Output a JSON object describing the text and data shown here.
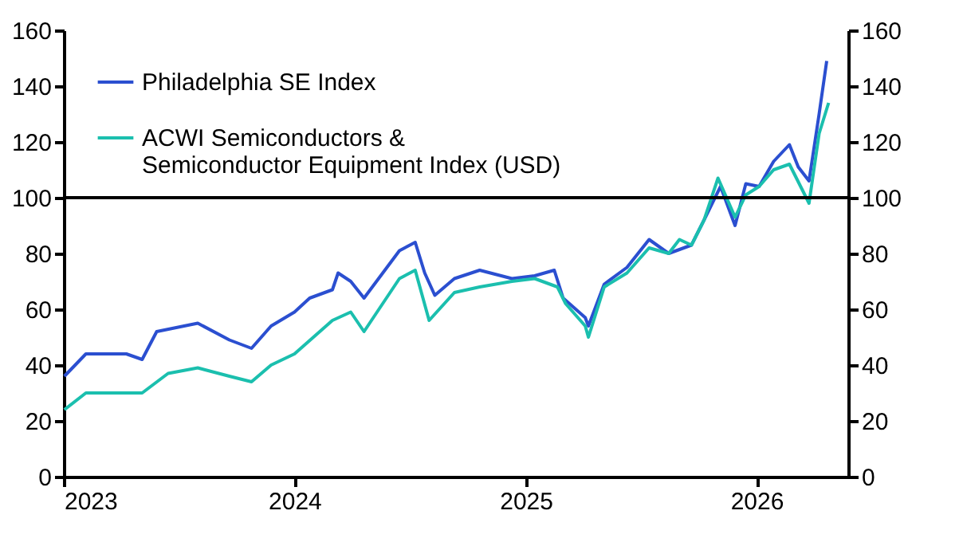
{
  "chart_data": {
    "type": "line",
    "legend": "top left",
    "ylim": [
      0,
      160
    ],
    "yticks": [
      0,
      20,
      40,
      60,
      80,
      100,
      120,
      140,
      160
    ],
    "y2lim": [
      0,
      160
    ],
    "y2ticks": [
      0,
      20,
      40,
      60,
      80,
      100,
      120,
      140,
      160
    ],
    "xlim": [
      "2023-01-01",
      "2026-05-26"
    ],
    "xticks": [
      "2023",
      "2024",
      "2025",
      "2026"
    ],
    "grid": false,
    "line_style": "solid",
    "ref_lines": [
      {
        "axis": "y2",
        "value": 100,
        "color": "#000000"
      }
    ],
    "series": [
      {
        "name": "Philadelphia SE Index",
        "color": "#2b4fd0",
        "x": [
          "2023-01-02",
          "2023-02-05",
          "2023-04-10",
          "2023-05-05",
          "2023-05-28",
          "2023-08-01",
          "2023-09-20",
          "2023-10-25",
          "2023-11-25",
          "2024-01-01",
          "2024-01-25",
          "2024-03-01",
          "2024-03-10",
          "2024-03-30",
          "2024-04-20",
          "2024-06-15",
          "2024-07-10",
          "2024-07-25",
          "2024-08-10",
          "2024-09-10",
          "2024-10-20",
          "2024-12-10",
          "2025-01-15",
          "2025-02-15",
          "2025-03-01",
          "2025-04-05",
          "2025-04-10",
          "2025-05-05",
          "2025-06-10",
          "2025-07-15",
          "2025-08-15",
          "2025-09-20",
          "2025-10-10",
          "2025-11-05",
          "2025-11-28",
          "2025-12-15",
          "2026-01-05",
          "2026-01-28",
          "2026-02-22",
          "2026-03-08",
          "2026-03-25",
          "2026-04-10",
          "2026-04-22"
        ],
        "values": [
          36,
          44,
          44,
          42,
          52,
          55,
          49,
          46,
          54,
          59,
          64,
          67,
          73,
          70,
          64,
          81,
          84,
          73,
          65,
          71,
          74,
          71,
          72,
          74,
          64,
          57,
          54,
          69,
          75,
          85,
          80,
          83,
          92,
          104,
          90,
          105,
          104,
          113,
          119,
          111,
          106,
          130,
          149
        ]
      },
      {
        "name": "ACWI Semiconductors & Semiconductor Equipment Index (USD)",
        "color": "#1bbfae",
        "x": [
          "2023-01-02",
          "2023-02-05",
          "2023-05-05",
          "2023-06-15",
          "2023-08-01",
          "2023-09-20",
          "2023-10-25",
          "2023-11-25",
          "2024-01-01",
          "2024-03-01",
          "2024-03-30",
          "2024-04-20",
          "2024-06-15",
          "2024-07-10",
          "2024-08-01",
          "2024-09-10",
          "2024-10-20",
          "2024-12-10",
          "2025-01-15",
          "2025-02-20",
          "2025-03-05",
          "2025-04-05",
          "2025-04-10",
          "2025-05-05",
          "2025-06-10",
          "2025-07-15",
          "2025-08-15",
          "2025-09-01",
          "2025-09-20",
          "2025-10-10",
          "2025-11-01",
          "2025-11-28",
          "2025-12-15",
          "2026-01-05",
          "2026-01-28",
          "2026-02-22",
          "2026-03-25",
          "2026-04-10",
          "2026-04-25"
        ],
        "values": [
          24,
          30,
          30,
          37,
          39,
          36,
          34,
          40,
          44,
          56,
          59,
          52,
          71,
          74,
          56,
          66,
          68,
          70,
          71,
          68,
          62,
          54,
          50,
          68,
          73,
          82,
          80,
          85,
          83,
          92,
          107,
          93,
          101,
          104,
          110,
          112,
          98,
          123,
          134
        ]
      }
    ]
  }
}
